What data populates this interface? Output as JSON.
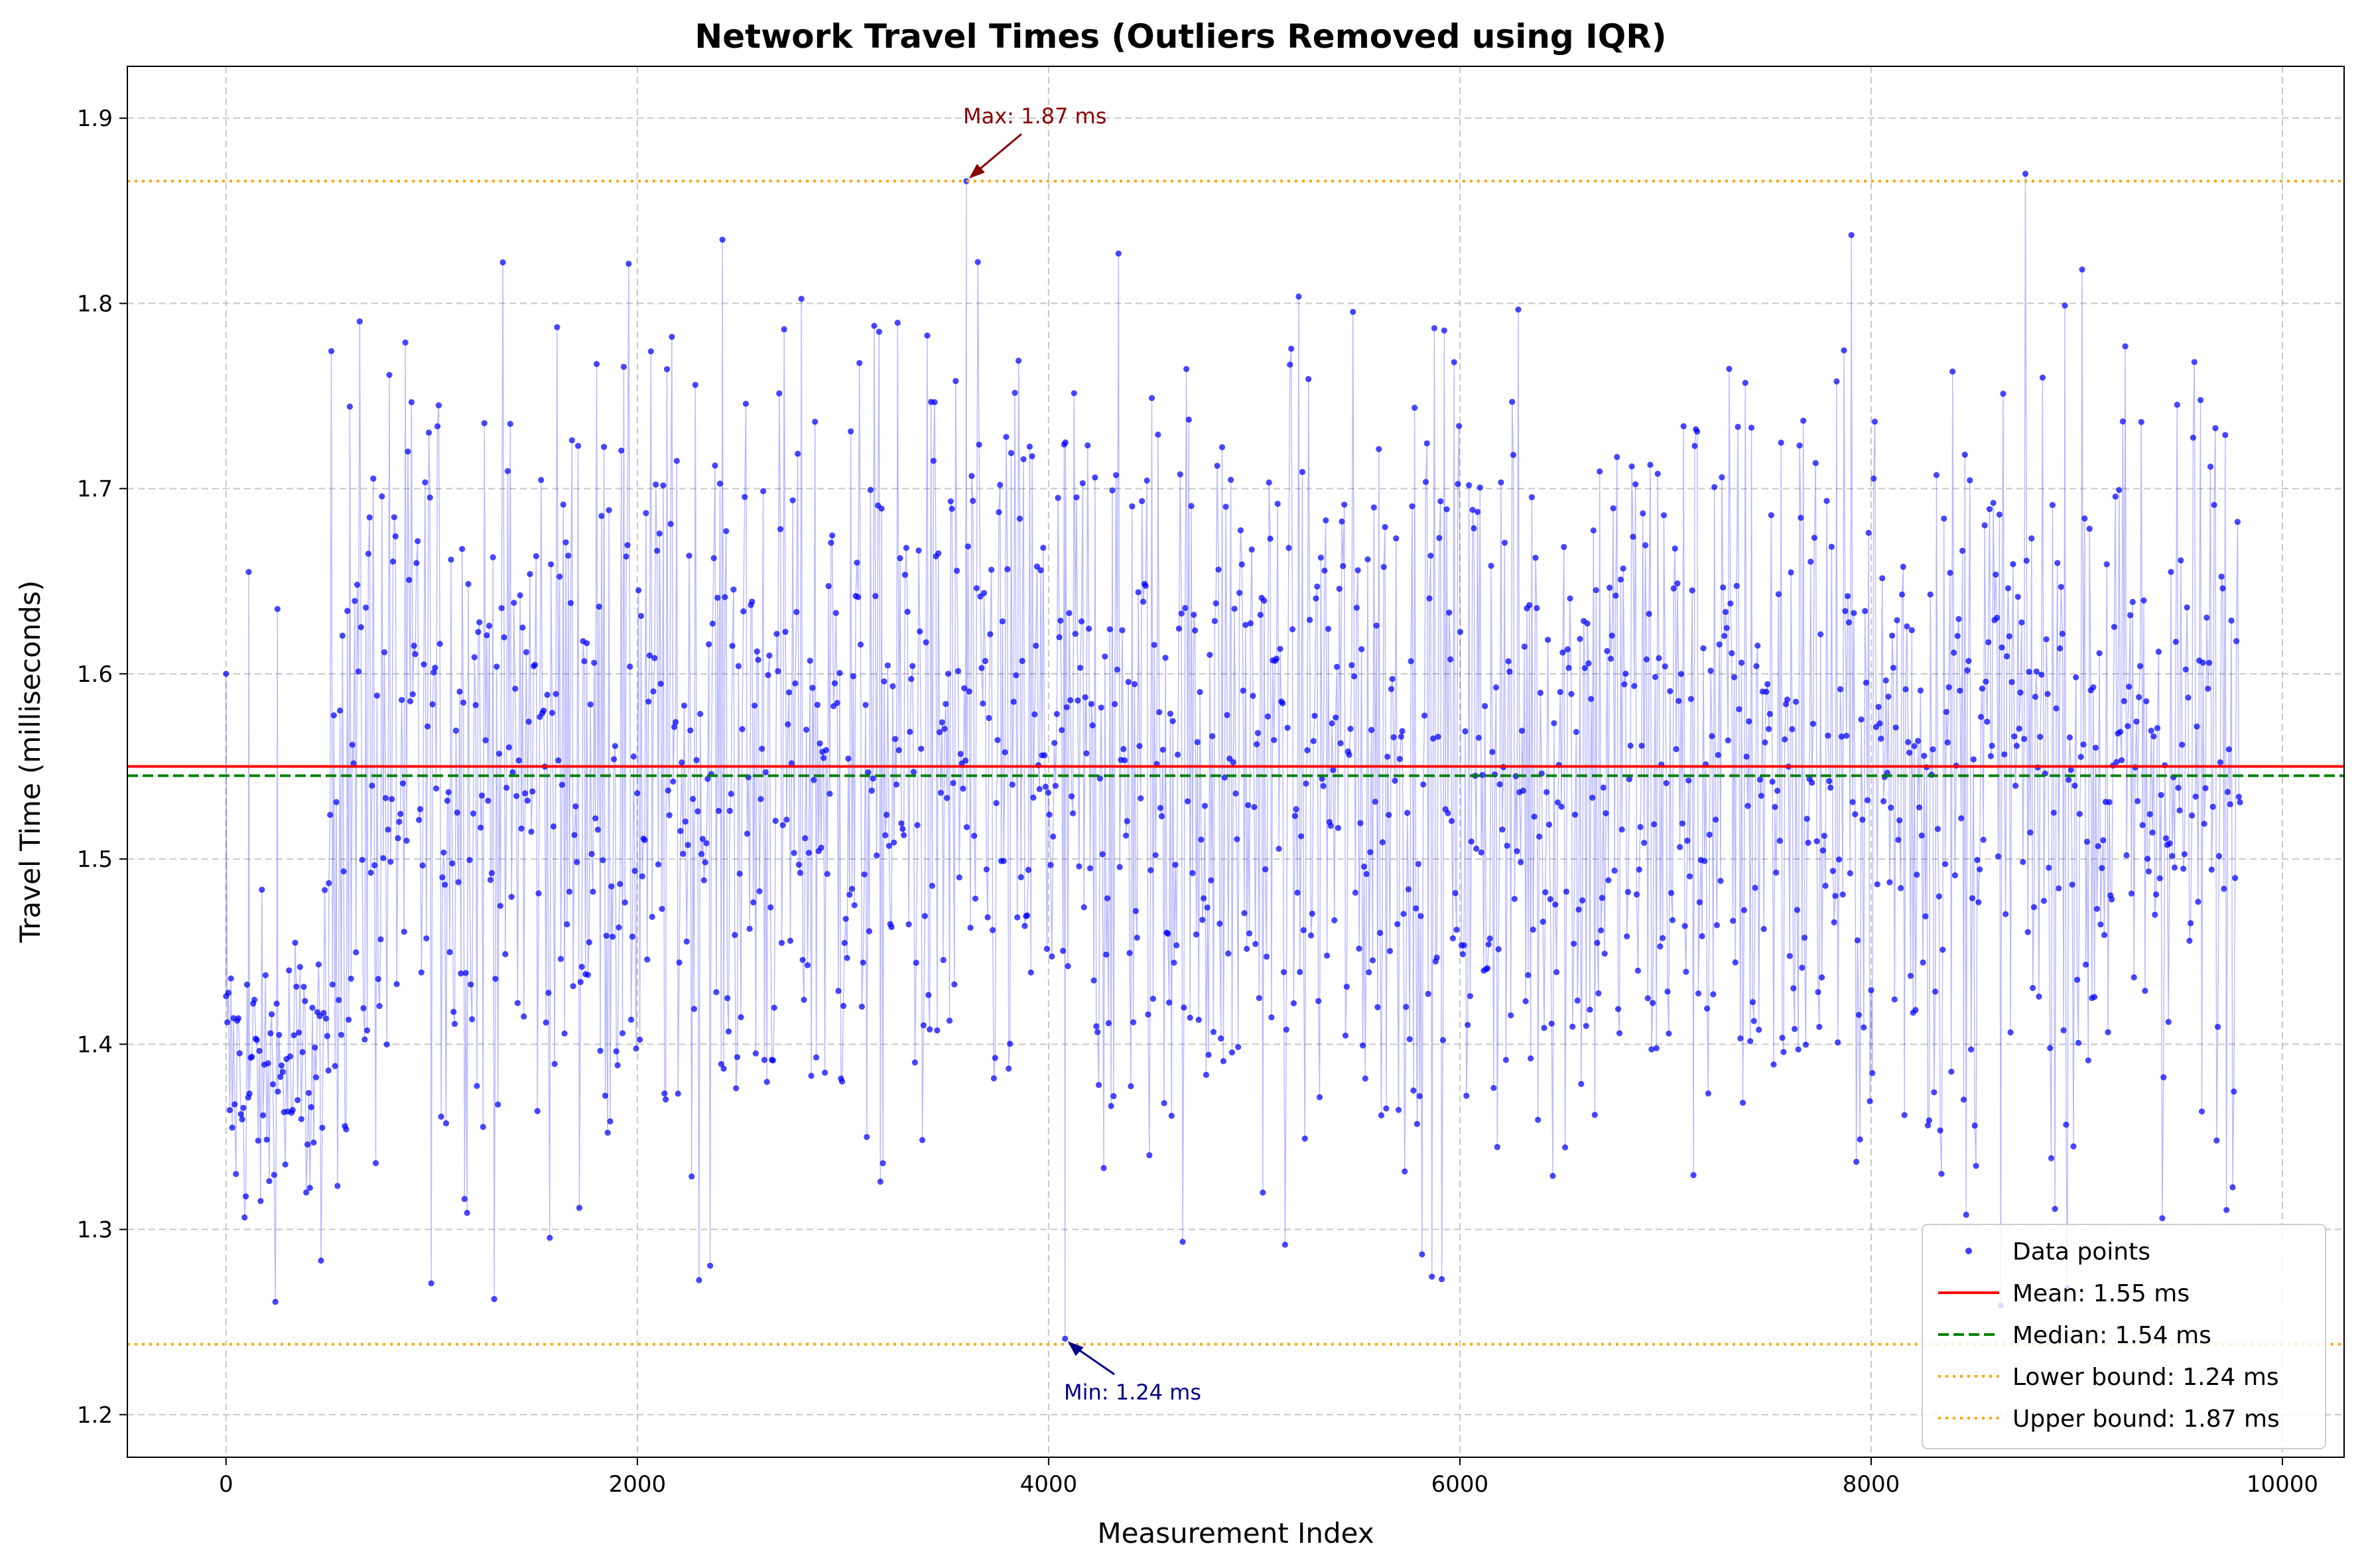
{
  "chart_data": {
    "type": "scatter",
    "title": "Network Travel Times (Outliers Removed using IQR)",
    "xlabel": "Measurement Index",
    "ylabel": "Travel Time (milliseconds)",
    "xlim": [
      -480,
      10300
    ],
    "ylim": [
      1.177,
      1.928
    ],
    "x_ticks": [
      0,
      2000,
      4000,
      6000,
      8000,
      10000
    ],
    "x_tick_labels": [
      "0",
      "2000",
      "4000",
      "6000",
      "8000",
      "10000"
    ],
    "y_ticks": [
      1.2,
      1.3,
      1.4,
      1.5,
      1.6,
      1.7,
      1.8,
      1.9
    ],
    "y_tick_labels": [
      "1.2",
      "1.3",
      "1.4",
      "1.5",
      "1.6",
      "1.7",
      "1.8",
      "1.9"
    ],
    "grid": true,
    "legend_position": "lower right",
    "series": [
      {
        "name": "Data points",
        "color": "#0000ff",
        "marker": "circle",
        "n_points_approx": 9800,
        "segments": [
          {
            "x_range": [
              0,
              500
            ],
            "y_center": 1.38,
            "y_spread": [
              1.25,
              1.66
            ]
          },
          {
            "x_range": [
              500,
              9800
            ],
            "y_center": 1.55,
            "y_spread": [
              1.24,
              1.87
            ]
          }
        ],
        "notable_points": [
          {
            "x": 0,
            "y": 1.6
          },
          {
            "x": 110,
            "y": 1.655
          },
          {
            "x": 250,
            "y": 1.635
          },
          {
            "x": 3600,
            "y": 1.866
          },
          {
            "x": 4080,
            "y": 1.241
          }
        ]
      }
    ],
    "reference_lines": [
      {
        "label": "Mean: 1.55 ms",
        "y": 1.55,
        "color": "#ff0000",
        "style": "solid"
      },
      {
        "label": "Median: 1.54 ms",
        "y": 1.545,
        "color": "#008000",
        "style": "dashed"
      },
      {
        "label": "Lower bound: 1.24 ms",
        "y": 1.238,
        "color": "#ffa500",
        "style": "dotted"
      },
      {
        "label": "Upper bound: 1.87 ms",
        "y": 1.866,
        "color": "#ffa500",
        "style": "dotted"
      }
    ],
    "annotations": [
      {
        "text": "Max: 1.87 ms",
        "x": 3600,
        "y": 1.866,
        "color": "#8b0000"
      },
      {
        "text": "Min: 1.24 ms",
        "x": 4080,
        "y": 1.241,
        "color": "#00008b"
      }
    ]
  }
}
